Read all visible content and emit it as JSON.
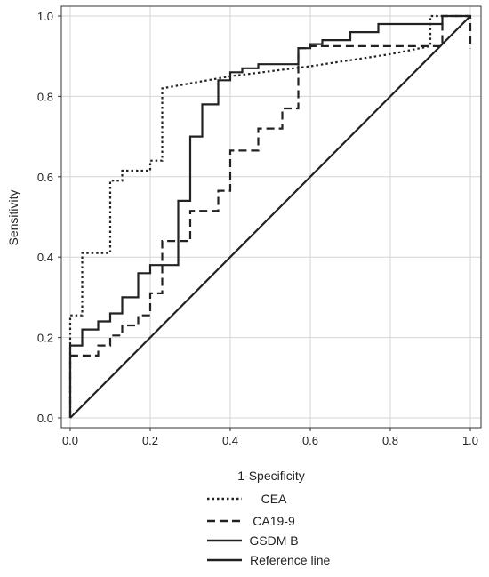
{
  "chart_data": {
    "type": "line",
    "title": "",
    "xlabel": "1-Specificity",
    "ylabel": "Sensitivity",
    "xlim": [
      0,
      1
    ],
    "ylim": [
      0,
      1
    ],
    "xticks": [
      "0.0",
      "0.2",
      "0.4",
      "0.6",
      "0.8",
      "1.0"
    ],
    "yticks": [
      "0.0",
      "0.2",
      "0.4",
      "0.6",
      "0.8",
      "1.0"
    ],
    "grid": true,
    "legend_position": "bottom-center",
    "series": [
      {
        "name": "CEA",
        "style": "dotted",
        "color": "#222222",
        "x": [
          0,
          0,
          0.03,
          0.03,
          0.1,
          0.1,
          0.13,
          0.13,
          0.2,
          0.2,
          0.23,
          0.23,
          0.4,
          0.6,
          0.8,
          0.9,
          0.9,
          1
        ],
        "y": [
          0,
          0.255,
          0.255,
          0.41,
          0.41,
          0.59,
          0.59,
          0.615,
          0.615,
          0.64,
          0.64,
          0.82,
          0.85,
          0.875,
          0.905,
          0.925,
          1,
          1
        ]
      },
      {
        "name": "CA19-9",
        "style": "dashed",
        "color": "#222222",
        "x": [
          0,
          0,
          0.07,
          0.07,
          0.1,
          0.1,
          0.13,
          0.13,
          0.17,
          0.17,
          0.2,
          0.2,
          0.23,
          0.23,
          0.3,
          0.3,
          0.37,
          0.37,
          0.4,
          0.4,
          0.47,
          0.47,
          0.53,
          0.53,
          0.57,
          0.57,
          0.6,
          0.6,
          0.93,
          0.93,
          1,
          1
        ],
        "y": [
          0,
          0.155,
          0.155,
          0.18,
          0.18,
          0.205,
          0.205,
          0.23,
          0.23,
          0.255,
          0.255,
          0.31,
          0.31,
          0.44,
          0.44,
          0.515,
          0.515,
          0.565,
          0.565,
          0.665,
          0.665,
          0.72,
          0.72,
          0.77,
          0.77,
          0.92,
          0.92,
          0.925,
          0.925,
          1,
          1,
          0.92
        ]
      },
      {
        "name": "GSDM B",
        "style": "solid",
        "color": "#222222",
        "x": [
          0,
          0,
          0.03,
          0.03,
          0.07,
          0.07,
          0.1,
          0.1,
          0.13,
          0.13,
          0.17,
          0.17,
          0.2,
          0.2,
          0.27,
          0.27,
          0.3,
          0.3,
          0.33,
          0.33,
          0.37,
          0.37,
          0.4,
          0.4,
          0.43,
          0.43,
          0.47,
          0.47,
          0.57,
          0.57,
          0.6,
          0.6,
          0.63,
          0.63,
          0.7,
          0.7,
          0.77,
          0.77,
          0.93,
          0.93,
          1
        ],
        "y": [
          0,
          0.18,
          0.18,
          0.22,
          0.22,
          0.24,
          0.24,
          0.26,
          0.26,
          0.3,
          0.3,
          0.36,
          0.36,
          0.38,
          0.38,
          0.54,
          0.54,
          0.7,
          0.7,
          0.78,
          0.78,
          0.84,
          0.84,
          0.86,
          0.86,
          0.87,
          0.87,
          0.88,
          0.88,
          0.92,
          0.92,
          0.93,
          0.93,
          0.94,
          0.94,
          0.96,
          0.96,
          0.98,
          0.98,
          1.0,
          1.0
        ]
      },
      {
        "name": "Reference line",
        "style": "solid",
        "color": "#222222",
        "x": [
          0,
          1
        ],
        "y": [
          0,
          1
        ]
      }
    ]
  }
}
